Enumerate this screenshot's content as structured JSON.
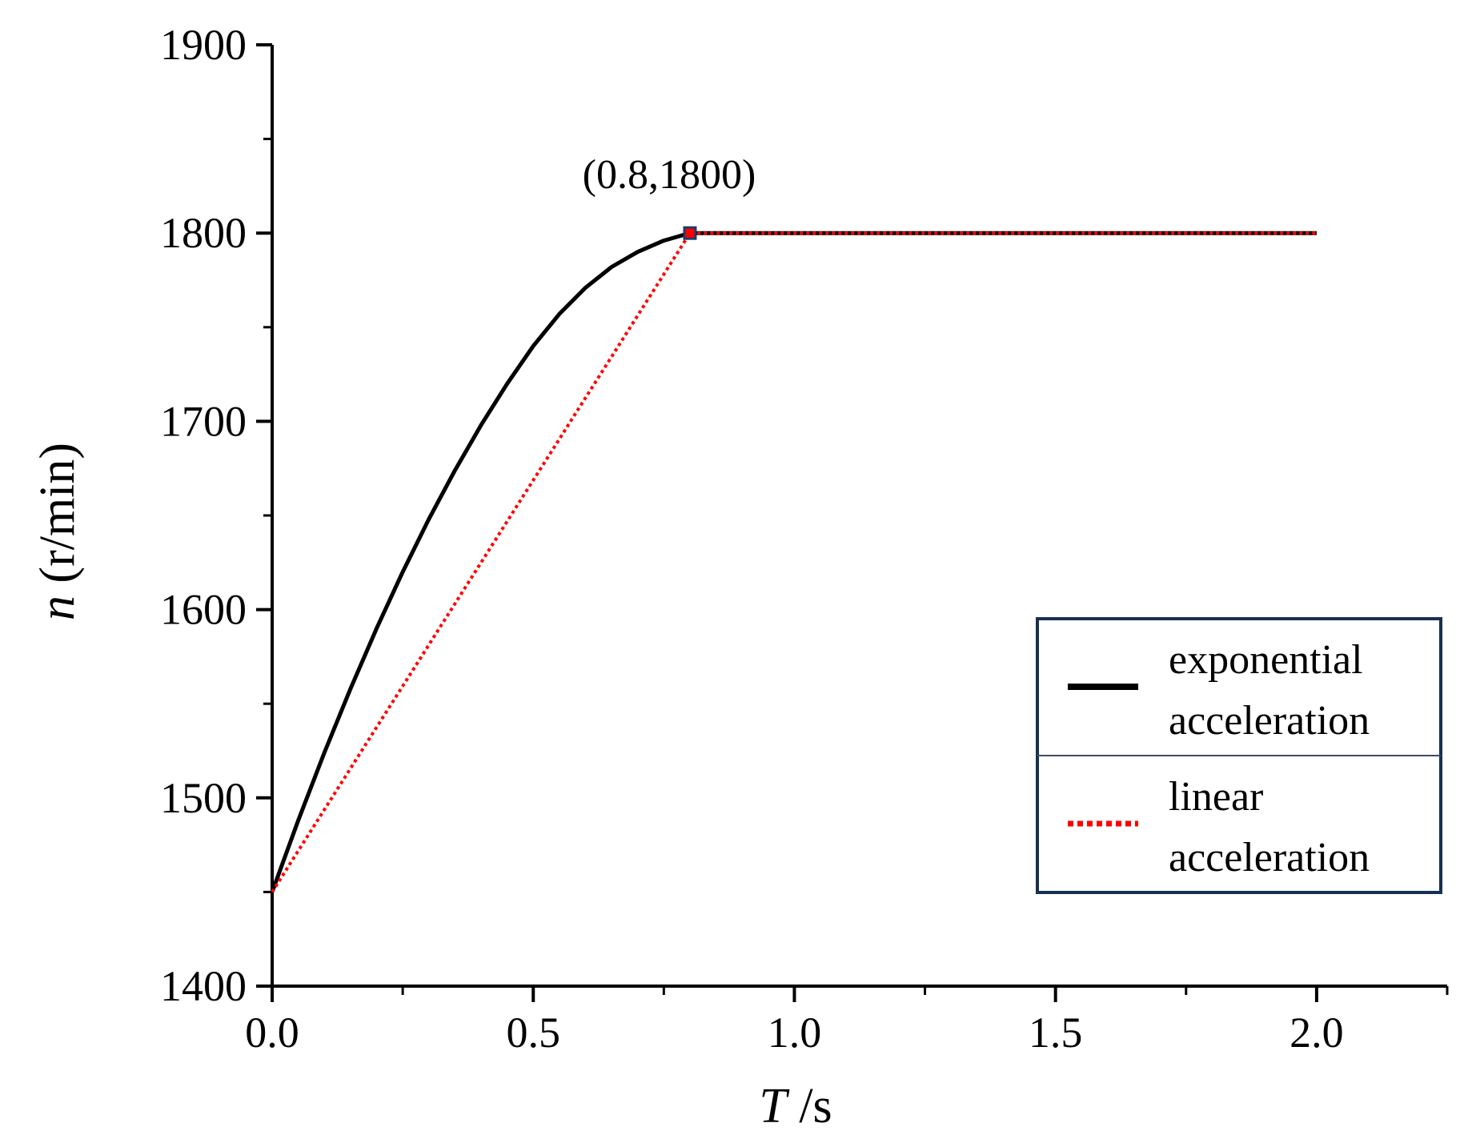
{
  "chart_data": {
    "type": "line",
    "title": "",
    "xlabel_var": "T",
    "xlabel_unit": " /s",
    "ylabel_var": "n",
    "ylabel_unit": " (r/min)",
    "xlim": [
      0,
      2.25
    ],
    "ylim": [
      1400,
      1900
    ],
    "x_ticks": [
      0.0,
      0.5,
      1.0,
      1.5,
      2.0
    ],
    "x_tick_labels": [
      "0.0",
      "0.5",
      "1.0",
      "1.5",
      "2.0"
    ],
    "x_minor_ticks": [
      0.25,
      0.75,
      1.25,
      1.75,
      2.25
    ],
    "y_ticks": [
      1400,
      1500,
      1600,
      1700,
      1800,
      1900
    ],
    "y_tick_labels": [
      "1400",
      "1500",
      "1600",
      "1700",
      "1800",
      "1900"
    ],
    "y_minor_ticks": [
      1450,
      1550,
      1650,
      1750,
      1850
    ],
    "grid": false,
    "series": [
      {
        "name": "exponential acceleration",
        "legend_lines": [
          "exponential",
          "acceleration"
        ],
        "color": "#000000",
        "style": "solid",
        "x": [
          0.0,
          0.05,
          0.1,
          0.15,
          0.2,
          0.25,
          0.3,
          0.35,
          0.4,
          0.45,
          0.5,
          0.55,
          0.6,
          0.65,
          0.7,
          0.75,
          0.8,
          2.0
        ],
        "y": [
          1450,
          1488,
          1524,
          1558,
          1590,
          1620,
          1648,
          1674,
          1698,
          1720,
          1740,
          1757,
          1771,
          1782,
          1790,
          1796,
          1800,
          1800
        ]
      },
      {
        "name": "linear acceleration",
        "legend_lines": [
          "linear",
          "acceleration"
        ],
        "color": "#ff0000",
        "style": "dotted",
        "x": [
          0.0,
          0.8,
          2.0
        ],
        "y": [
          1450,
          1800,
          1800
        ]
      }
    ],
    "annotations": [
      {
        "text": "(0.8,1800)",
        "x": 0.8,
        "y": 1800,
        "marker": "square"
      }
    ],
    "legend": {
      "placement": "bottom-right"
    }
  }
}
